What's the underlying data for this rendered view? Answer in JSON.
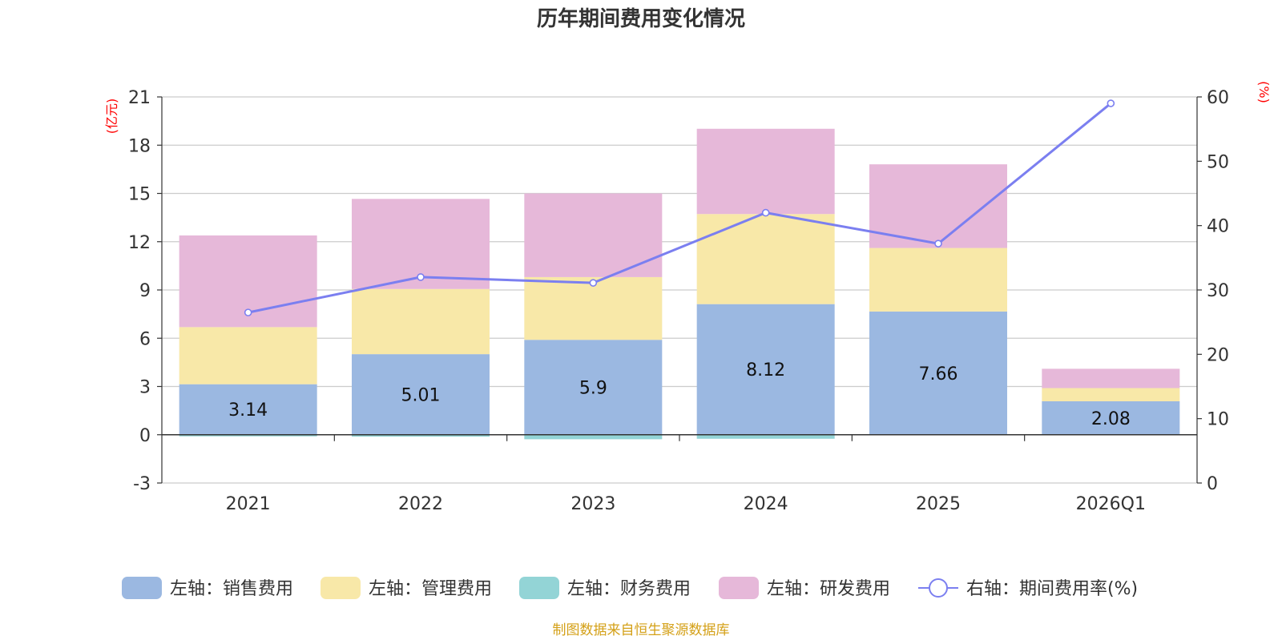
{
  "chart_data": {
    "type": "bar",
    "stacked": true,
    "title": "历年期间费用变化情况",
    "categories": [
      "2021",
      "2022",
      "2023",
      "2024",
      "2025",
      "2026Q1"
    ],
    "left_axis": {
      "unit": "(亿元)",
      "ylim": [
        -3,
        21
      ],
      "ticks": [
        -3,
        0,
        3,
        6,
        9,
        12,
        15,
        18,
        21
      ]
    },
    "right_axis": {
      "unit": "(%)",
      "ylim": [
        0,
        60
      ],
      "ticks": [
        0,
        10,
        20,
        30,
        40,
        50,
        60
      ]
    },
    "series": [
      {
        "name": "左轴：销售费用",
        "color": "#9bb8e1",
        "values": [
          3.14,
          5.01,
          5.9,
          8.12,
          7.66,
          2.08
        ],
        "labels": [
          "3.14",
          "5.01",
          "5.9",
          "8.12",
          "7.66",
          "2.08"
        ]
      },
      {
        "name": "左轴：管理费用",
        "color": "#f8e8a8",
        "values": [
          3.55,
          4.05,
          3.9,
          5.6,
          3.95,
          0.82
        ]
      },
      {
        "name": "左轴：财务费用",
        "color": "#93d4d6",
        "values": [
          -0.1,
          -0.12,
          -0.28,
          -0.25,
          -0.03,
          -0.02
        ]
      },
      {
        "name": "左轴：研发费用",
        "color": "#e6b8d9",
        "values": [
          5.7,
          5.6,
          5.2,
          5.3,
          5.2,
          1.2
        ]
      }
    ],
    "line": {
      "name": "右轴：期间费用率(%)",
      "color": "#7b7ff0",
      "values": [
        26.5,
        32,
        31.1,
        42,
        37.2,
        59
      ]
    },
    "source": "制图数据来自恒生聚源数据库"
  }
}
